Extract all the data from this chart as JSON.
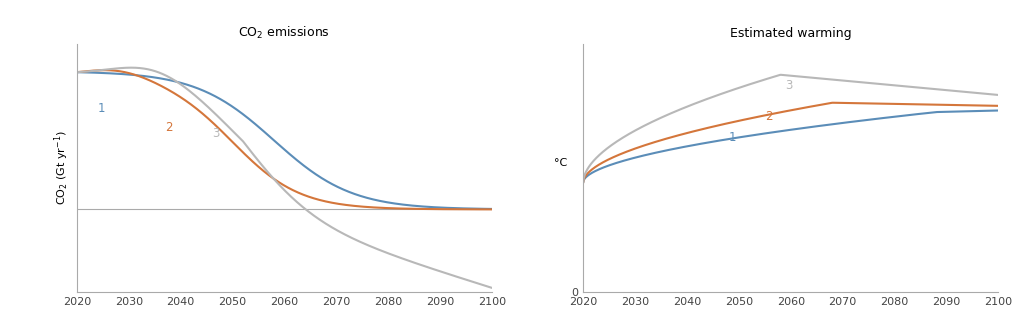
{
  "title_left": "CO$_2$ emissions",
  "title_right": "Estimated warming",
  "ylabel_left": "CO$_2$ (Gt yr$^{-1}$)",
  "ylabel_right": "°C",
  "xticks": [
    2020,
    2030,
    2040,
    2050,
    2060,
    2070,
    2080,
    2090,
    2100
  ],
  "color1": "#5b8db8",
  "color2": "#d4763b",
  "color3": "#b8b8b8",
  "emissions_ylim_min": -0.3,
  "emissions_ylim_max": 0.6,
  "warming_ylim_min": 0.0,
  "warming_ylim_max": 0.8,
  "bg_color": "#ffffff"
}
